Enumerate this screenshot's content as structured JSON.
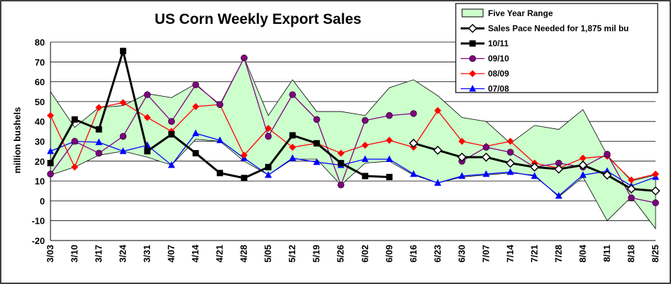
{
  "chart_data": {
    "type": "line",
    "title": "US Corn Weekly Export Sales",
    "xlabel": "",
    "ylabel": "million bushels",
    "ylim": [
      -20,
      80
    ],
    "yticks": [
      -20,
      -10,
      0,
      10,
      20,
      30,
      40,
      50,
      60,
      70,
      80
    ],
    "grid": true,
    "legend_position": "top-right",
    "categories": [
      "3/03",
      "3/10",
      "3/17",
      "3/24",
      "3/31",
      "4/07",
      "4/14",
      "4/21",
      "4/28",
      "5/05",
      "5/12",
      "5/19",
      "5/26",
      "6/02",
      "6/09",
      "6/16",
      "6/23",
      "6/30",
      "7/07",
      "7/14",
      "7/21",
      "7/28",
      "8/04",
      "8/11",
      "8/18",
      "8/25"
    ],
    "range": {
      "name": "Five Year Range",
      "upper": [
        55,
        37,
        47,
        48,
        54,
        52,
        59,
        48,
        72,
        43,
        61,
        45,
        45,
        43,
        57,
        61,
        53,
        42,
        40,
        29,
        38,
        36,
        46,
        23,
        10,
        13
      ],
      "lower": [
        13,
        17,
        23,
        25,
        22,
        18,
        31,
        30,
        20,
        13,
        21,
        21,
        8,
        19,
        20,
        13,
        9,
        12,
        13,
        14,
        13,
        2,
        12,
        -10,
        2,
        -14
      ],
      "fill": "#CCFFCC",
      "stroke": "#000000"
    },
    "series": [
      {
        "name": "Sales Pace Needed for 1,875 mil bu",
        "color": "#000000",
        "marker": "diamond-open",
        "values": [
          null,
          null,
          null,
          null,
          null,
          null,
          null,
          null,
          null,
          null,
          null,
          null,
          null,
          null,
          null,
          29,
          25.5,
          22,
          22,
          19,
          17,
          16,
          18,
          13,
          6,
          5
        ]
      },
      {
        "name": "10/11",
        "color": "#000000",
        "marker": "square",
        "values": [
          19,
          41,
          36,
          75.5,
          25,
          33.5,
          24,
          14,
          11.5,
          17,
          33,
          29,
          19,
          12.5,
          12,
          null,
          null,
          null,
          null,
          null,
          null,
          null,
          null,
          null,
          null,
          null
        ]
      },
      {
        "name": "09/10",
        "color": "#800080",
        "marker": "circle",
        "values": [
          13.5,
          30,
          24,
          32.5,
          53.5,
          40,
          58.5,
          48.5,
          72,
          32.5,
          53.5,
          41,
          8,
          40.5,
          43,
          44,
          null,
          20,
          27,
          24.5,
          17,
          19,
          17,
          23.5,
          1.5,
          -1
        ]
      },
      {
        "name": "08/09",
        "color": "#FF0000",
        "marker": "diamond",
        "values": [
          43,
          17,
          47,
          49.5,
          42,
          35,
          47.5,
          48.5,
          23,
          36.5,
          27,
          29,
          24,
          28,
          30.5,
          27,
          45.5,
          30,
          27.5,
          30,
          19,
          16.5,
          21.5,
          22.5,
          10.5,
          13.5
        ]
      },
      {
        "name": "07/08",
        "color": "#0000FF",
        "marker": "triangle",
        "values": [
          25,
          30,
          29.5,
          25,
          28,
          18,
          34,
          30.5,
          21.5,
          13,
          21.5,
          19.5,
          18,
          21,
          21,
          13.5,
          9,
          12.5,
          13.5,
          14.5,
          12.5,
          2.5,
          13,
          15,
          7.5,
          12
        ]
      }
    ]
  }
}
